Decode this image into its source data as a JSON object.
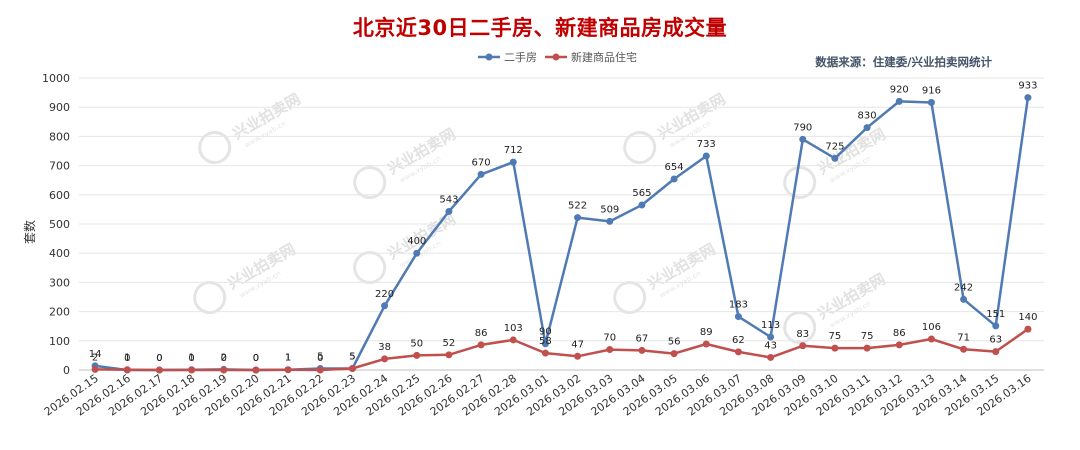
{
  "chart_data": {
    "type": "line",
    "title": "北京近30日二手房、新建商品房成交量",
    "source": "数据来源：住建委/兴业拍卖网统计",
    "ylabel": "套数",
    "xlabel": "",
    "ylim": [
      0,
      1000
    ],
    "yticks": [
      0,
      100,
      200,
      300,
      400,
      500,
      600,
      700,
      800,
      900,
      1000
    ],
    "legend_position": "top-center",
    "categories": [
      "2026.02.15",
      "2026.02.16",
      "2026.02.17",
      "2026.02.18",
      "2026.02.19",
      "2026.02.20",
      "2026.02.21",
      "2026.02.22",
      "2026.02.23",
      "2026.02.24",
      "2026.02.25",
      "2026.02.26",
      "2026.02.27",
      "2026.02.28",
      "2026.03.01",
      "2026.03.02",
      "2026.03.03",
      "2026.03.04",
      "2026.03.05",
      "2026.03.06",
      "2026.03.07",
      "2026.03.08",
      "2026.03.09",
      "2026.03.10",
      "2026.03.11",
      "2026.03.12",
      "2026.03.13",
      "2026.03.14",
      "2026.03.15",
      "2026.03.16"
    ],
    "series": [
      {
        "name": "二手房",
        "color": "#4f7ab3",
        "values": [
          14,
          0,
          0,
          1,
          2,
          0,
          1,
          5,
          5,
          220,
          400,
          543,
          670,
          712,
          90,
          522,
          509,
          565,
          654,
          733,
          183,
          113,
          790,
          725,
          830,
          920,
          916,
          242,
          151,
          933
        ]
      },
      {
        "name": "新建商品住宅",
        "color": "#c0504d",
        "values": [
          2,
          1,
          0,
          0,
          0,
          0,
          1,
          0,
          5,
          38,
          50,
          52,
          86,
          103,
          58,
          47,
          70,
          67,
          56,
          89,
          62,
          43,
          83,
          75,
          75,
          86,
          106,
          71,
          63,
          140
        ]
      }
    ],
    "watermark": {
      "text": "兴业拍卖网",
      "sub": "www.xyab.cn"
    }
  }
}
